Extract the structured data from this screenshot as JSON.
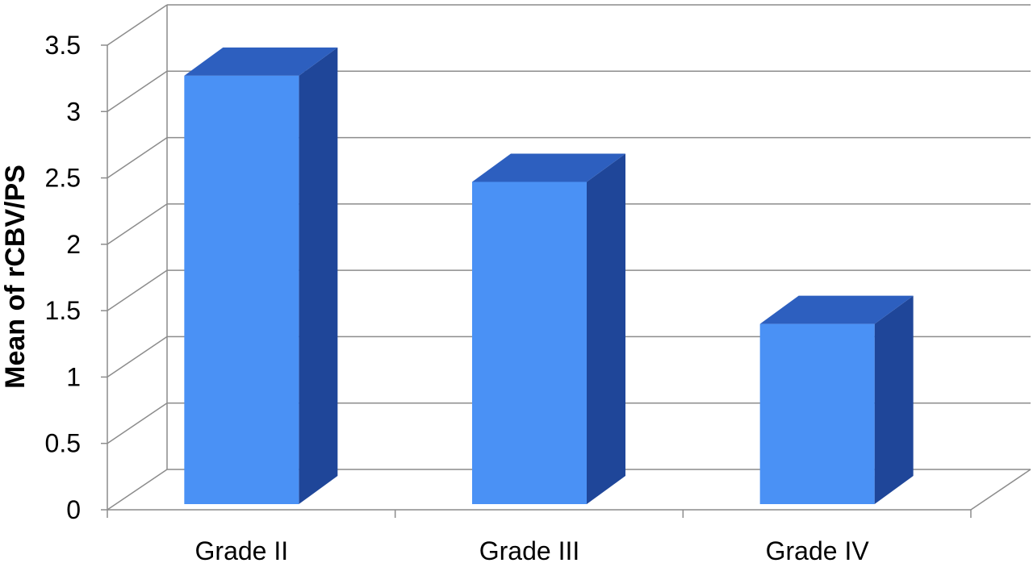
{
  "chart_data": {
    "type": "bar",
    "style": "3d-column",
    "title": "",
    "xlabel": "",
    "ylabel": "Mean of rCBV/PS",
    "categories": [
      "Grade II",
      "Grade III",
      "Grade IV"
    ],
    "series": [
      {
        "values": [
          3.27,
          2.47,
          1.4
        ]
      }
    ],
    "ylim": [
      0,
      3.5
    ],
    "yticks": [
      "0",
      "0.5",
      "1",
      "1.5",
      "2",
      "2.5",
      "3",
      "3.5"
    ],
    "grid": true,
    "legend": "none",
    "colors": {
      "front": "#4A91F5",
      "top": "#2D5FBF",
      "side": "#1F4699",
      "grid": "#8C8C8C",
      "axis": "#8C8C8C"
    }
  }
}
